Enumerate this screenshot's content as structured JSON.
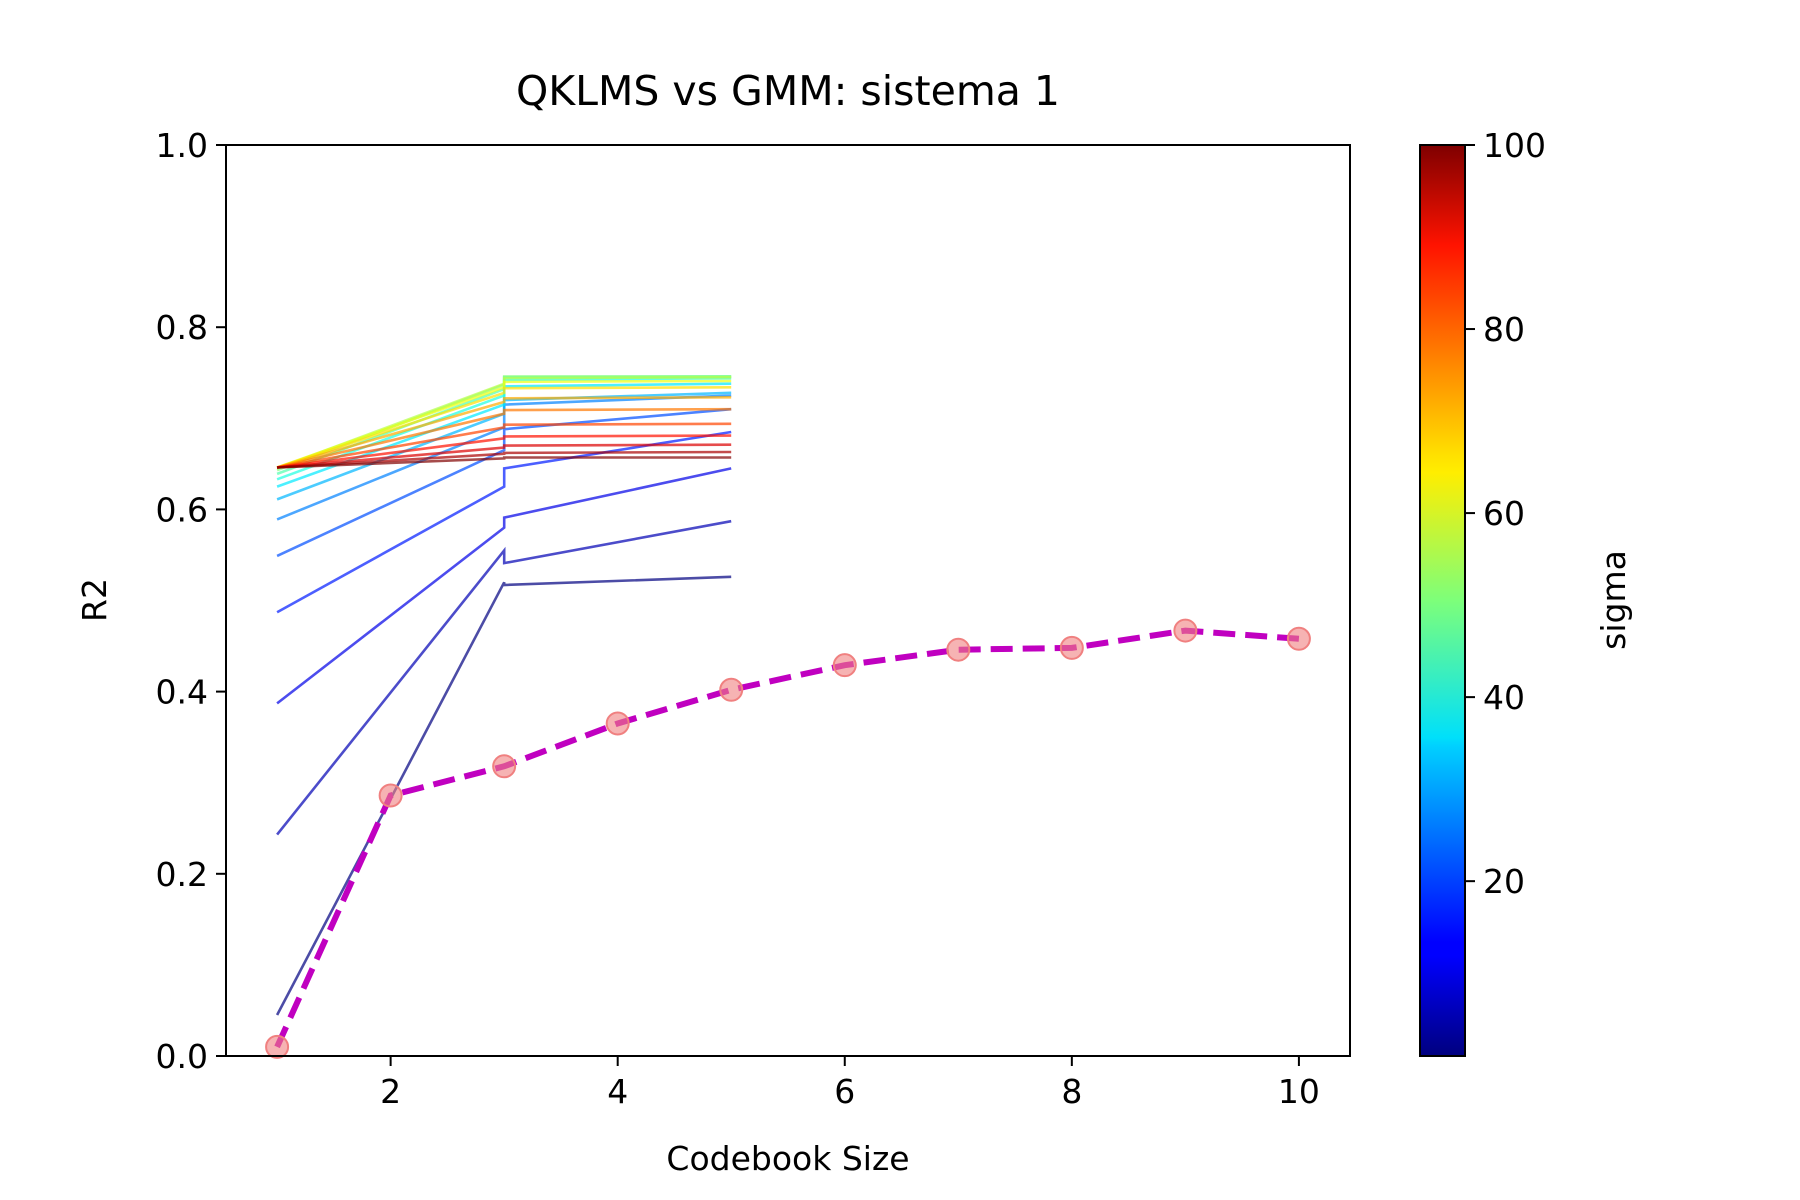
{
  "chart_data": {
    "type": "line",
    "title": "QKLMS vs GMM: sistema 1",
    "xlabel": "Codebook Size",
    "ylabel": "R2",
    "xlim": [
      0.55,
      10.45
    ],
    "ylim": [
      0.0,
      1.0
    ],
    "xticks": [
      2,
      4,
      6,
      8,
      10
    ],
    "yticks": [
      0.0,
      0.2,
      0.4,
      0.6,
      0.8,
      1.0
    ],
    "xtick_labels": [
      "2",
      "4",
      "6",
      "8",
      "10"
    ],
    "ytick_labels": [
      "0.0",
      "0.2",
      "0.4",
      "0.6",
      "0.8",
      "1.0"
    ],
    "grid": false,
    "qklms_series": [
      {
        "sigma": 1,
        "points": [
          [
            1,
            0.045
          ],
          [
            3,
            0.52
          ],
          [
            3,
            0.517
          ],
          [
            5,
            0.526
          ]
        ]
      },
      {
        "sigma": 6,
        "points": [
          [
            1,
            0.243
          ],
          [
            3,
            0.555
          ],
          [
            3,
            0.541
          ],
          [
            5,
            0.587
          ]
        ]
      },
      {
        "sigma": 11,
        "points": [
          [
            1,
            0.387
          ],
          [
            3,
            0.58
          ],
          [
            3,
            0.591
          ],
          [
            5,
            0.645
          ]
        ]
      },
      {
        "sigma": 16,
        "points": [
          [
            1,
            0.487
          ],
          [
            3,
            0.625
          ],
          [
            3,
            0.645
          ],
          [
            5,
            0.685
          ]
        ]
      },
      {
        "sigma": 21,
        "points": [
          [
            1,
            0.549
          ],
          [
            3,
            0.665
          ],
          [
            3,
            0.688
          ],
          [
            5,
            0.71
          ]
        ]
      },
      {
        "sigma": 26,
        "points": [
          [
            1,
            0.589
          ],
          [
            3,
            0.69
          ],
          [
            3,
            0.715
          ],
          [
            5,
            0.725
          ]
        ]
      },
      {
        "sigma": 31,
        "points": [
          [
            1,
            0.611
          ],
          [
            3,
            0.705
          ],
          [
            3,
            0.72
          ],
          [
            5,
            0.728
          ]
        ]
      },
      {
        "sigma": 36,
        "points": [
          [
            1,
            0.625
          ],
          [
            3,
            0.715
          ],
          [
            3,
            0.735
          ],
          [
            5,
            0.738
          ]
        ]
      },
      {
        "sigma": 41,
        "points": [
          [
            1,
            0.633
          ],
          [
            3,
            0.725
          ],
          [
            3,
            0.742
          ],
          [
            5,
            0.744
          ]
        ]
      },
      {
        "sigma": 46,
        "points": [
          [
            1,
            0.639
          ],
          [
            3,
            0.732
          ],
          [
            3,
            0.745
          ],
          [
            5,
            0.746
          ]
        ]
      },
      {
        "sigma": 51,
        "points": [
          [
            1,
            0.643
          ],
          [
            3,
            0.737
          ],
          [
            3,
            0.746
          ],
          [
            5,
            0.746
          ]
        ]
      },
      {
        "sigma": 56,
        "points": [
          [
            1,
            0.645
          ],
          [
            3,
            0.738
          ],
          [
            3,
            0.744
          ],
          [
            5,
            0.745
          ]
        ]
      },
      {
        "sigma": 61,
        "points": [
          [
            1,
            0.646
          ],
          [
            3,
            0.734
          ],
          [
            3,
            0.74
          ],
          [
            5,
            0.741
          ]
        ]
      },
      {
        "sigma": 66,
        "points": [
          [
            1,
            0.646
          ],
          [
            3,
            0.728
          ],
          [
            3,
            0.733
          ],
          [
            5,
            0.734
          ]
        ]
      },
      {
        "sigma": 71,
        "points": [
          [
            1,
            0.646
          ],
          [
            3,
            0.718
          ],
          [
            3,
            0.722
          ],
          [
            5,
            0.723
          ]
        ]
      },
      {
        "sigma": 76,
        "points": [
          [
            1,
            0.646
          ],
          [
            3,
            0.705
          ],
          [
            3,
            0.709
          ],
          [
            5,
            0.71
          ]
        ]
      },
      {
        "sigma": 81,
        "points": [
          [
            1,
            0.646
          ],
          [
            3,
            0.69
          ],
          [
            3,
            0.693
          ],
          [
            5,
            0.694
          ]
        ]
      },
      {
        "sigma": 86,
        "points": [
          [
            1,
            0.646
          ],
          [
            3,
            0.678
          ],
          [
            3,
            0.68
          ],
          [
            5,
            0.681
          ]
        ]
      },
      {
        "sigma": 91,
        "points": [
          [
            1,
            0.646
          ],
          [
            3,
            0.668
          ],
          [
            3,
            0.67
          ],
          [
            5,
            0.671
          ]
        ]
      },
      {
        "sigma": 96,
        "points": [
          [
            1,
            0.646
          ],
          [
            3,
            0.661
          ],
          [
            3,
            0.662
          ],
          [
            5,
            0.663
          ]
        ]
      },
      {
        "sigma": 100,
        "points": [
          [
            1,
            0.646
          ],
          [
            3,
            0.656
          ],
          [
            3,
            0.657
          ],
          [
            5,
            0.657
          ]
        ]
      }
    ],
    "gmm_series": {
      "x": [
        1,
        2,
        3,
        4,
        5,
        6,
        7,
        8,
        9,
        10
      ],
      "values": [
        0.01,
        0.286,
        0.318,
        0.365,
        0.402,
        0.429,
        0.446,
        0.448,
        0.467,
        0.458
      ],
      "line_color": "#c000c0",
      "marker_color": "#f08080",
      "line_style": "dashed"
    },
    "colorbar": {
      "label": "sigma",
      "range": [
        1,
        100
      ],
      "ticks": [
        20,
        40,
        60,
        80,
        100
      ],
      "tick_labels": [
        "20",
        "40",
        "60",
        "80",
        "100"
      ],
      "colormap": "jet"
    }
  }
}
